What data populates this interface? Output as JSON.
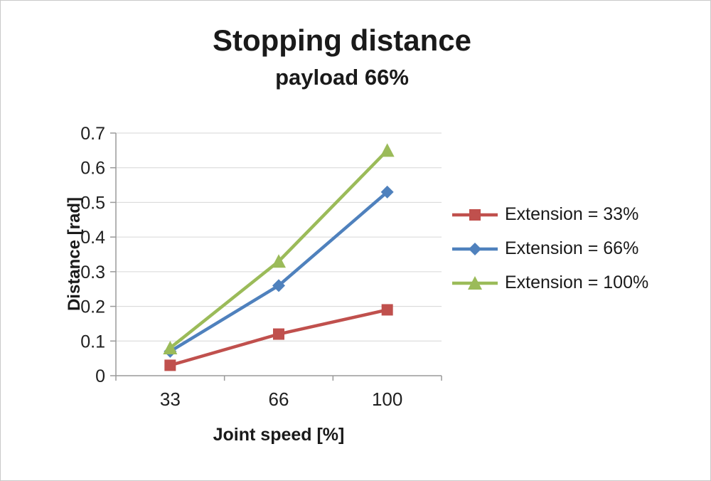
{
  "chart_data": {
    "type": "line",
    "title": "Stopping distance",
    "subtitle": "payload 66%",
    "xlabel": "Joint speed [%]",
    "ylabel": "Distance [rad]",
    "categories": [
      "33",
      "66",
      "100"
    ],
    "ylim": [
      0,
      0.7
    ],
    "ytick_step": 0.1,
    "grid": true,
    "legend_position": "right",
    "series": [
      {
        "name": "Extension = 33%",
        "values": [
          0.03,
          0.12,
          0.19
        ],
        "color": "#c0504d",
        "marker": "square"
      },
      {
        "name": "Extension = 66%",
        "values": [
          0.07,
          0.26,
          0.53
        ],
        "color": "#4f81bd",
        "marker": "diamond"
      },
      {
        "name": "Extension = 100%",
        "values": [
          0.08,
          0.33,
          0.65
        ],
        "color": "#9bbb59",
        "marker": "triangle"
      }
    ],
    "colors": {
      "gridline": "#d6d6d6",
      "axis": "#9a9a9a",
      "text": "#1f1f1f"
    }
  }
}
